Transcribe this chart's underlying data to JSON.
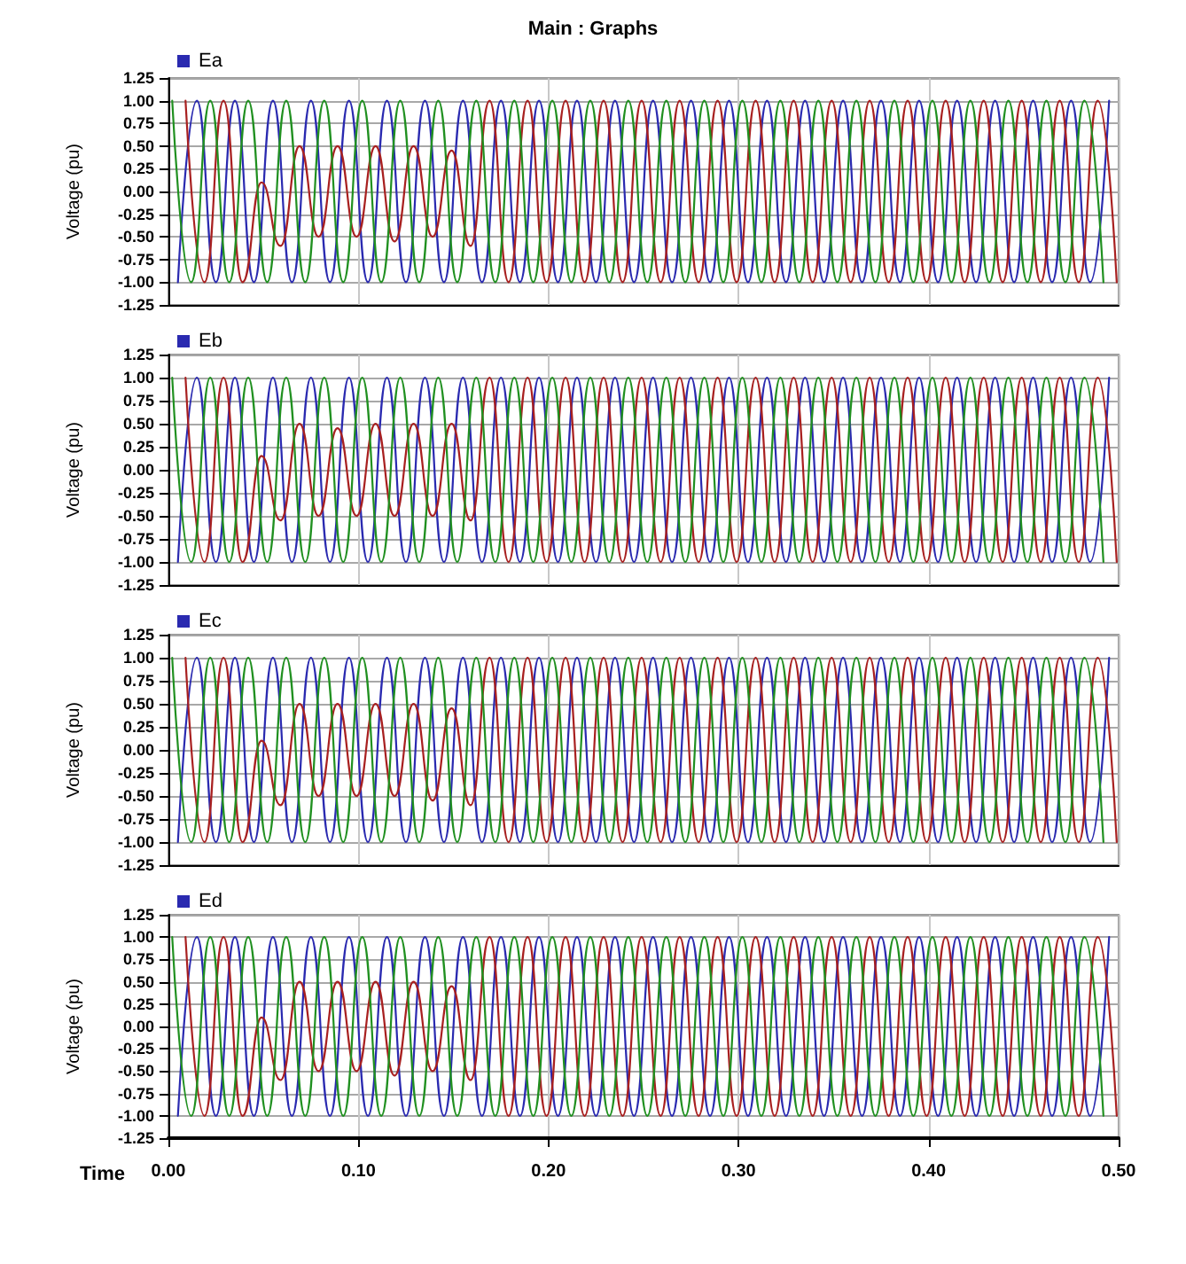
{
  "chart_data": [
    {
      "type": "line",
      "title": "Main : Graphs",
      "ylabel": "Voltage (pu)",
      "xlim": [
        0,
        0.5
      ],
      "ylim": [
        -1.25,
        1.25
      ],
      "xticks": [
        {
          "value": 0,
          "label": null
        },
        {
          "value": 0.1,
          "label": null
        },
        {
          "value": 0.2,
          "label": null
        },
        {
          "value": 0.3,
          "label": null
        },
        {
          "value": 0.4,
          "label": null
        },
        {
          "value": 0.5,
          "label": null
        }
      ],
      "yticks": [
        {
          "value": -1.25,
          "label": "-1.25"
        },
        {
          "value": -1,
          "label": "-1.00"
        },
        {
          "value": -0.75,
          "label": "-0.75"
        },
        {
          "value": -0.5,
          "label": "-0.50"
        },
        {
          "value": -0.25,
          "label": "-0.25"
        },
        {
          "value": 0,
          "label": "0.00"
        },
        {
          "value": 0.25,
          "label": "0.25"
        },
        {
          "value": 0.5,
          "label": "0.50"
        },
        {
          "value": 0.75,
          "label": "0.75"
        },
        {
          "value": 1,
          "label": "1.00"
        },
        {
          "value": 1.25,
          "label": "1.25"
        }
      ],
      "tick_labels": "y",
      "grid": true,
      "legend": "top left",
      "marker": "none",
      "line_style": "solid",
      "series": [
        {
          "name": "Ea",
          "color": "#2a2ab0",
          "x": [
            0.005,
            0.015,
            0.025,
            0.035,
            0.045,
            0.055,
            0.065,
            0.075,
            0.085,
            0.095,
            0.105,
            0.115,
            0.125,
            0.135,
            0.145,
            0.155,
            0.165,
            0.175,
            0.185,
            0.195,
            0.205,
            0.215,
            0.225,
            0.235,
            0.245,
            0.255,
            0.265,
            0.275,
            0.285,
            0.295,
            0.305,
            0.315,
            0.325,
            0.335,
            0.345,
            0.355,
            0.365,
            0.375,
            0.385,
            0.395,
            0.405,
            0.415,
            0.425,
            0.435,
            0.445,
            0.455,
            0.465,
            0.475,
            0.485,
            0.495
          ],
          "values": [
            -1,
            1,
            -1,
            1,
            -1,
            1,
            -1,
            1,
            -1,
            1,
            -1,
            1,
            -1,
            1,
            -1,
            1,
            -1,
            1,
            -1,
            1,
            -1,
            1,
            -1,
            1,
            -1,
            1,
            -1,
            1,
            -1,
            1,
            -1,
            1,
            -1,
            1,
            -1,
            1,
            -1,
            1,
            -1,
            1,
            -1,
            1,
            -1,
            1,
            -1,
            1,
            -1,
            1,
            -1,
            1
          ]
        },
        {
          "color": "#a82020",
          "x": [
            0.009,
            0.019,
            0.029,
            0.039,
            0.049,
            0.059,
            0.069,
            0.079,
            0.089,
            0.099,
            0.109,
            0.119,
            0.129,
            0.139,
            0.149,
            0.159,
            0.169,
            0.179,
            0.189,
            0.199,
            0.209,
            0.219,
            0.229,
            0.239,
            0.249,
            0.259,
            0.269,
            0.279,
            0.289,
            0.299,
            0.309,
            0.319,
            0.329,
            0.339,
            0.349,
            0.359,
            0.369,
            0.379,
            0.389,
            0.399,
            0.409,
            0.419,
            0.429,
            0.439,
            0.449,
            0.459,
            0.469,
            0.479,
            0.489,
            0.499
          ],
          "values": [
            1,
            -1,
            1,
            -1,
            0.1,
            -0.6,
            0.5,
            -0.5,
            0.5,
            -0.5,
            0.5,
            -0.55,
            0.5,
            -0.5,
            0.45,
            -0.6,
            1,
            -1,
            1,
            -1,
            1,
            -1,
            1,
            -1,
            1,
            -1,
            1,
            -1,
            1,
            -1,
            1,
            -1,
            1,
            -1,
            1,
            -1,
            1,
            -1,
            1,
            -1,
            1,
            -1,
            1,
            -1,
            1,
            -1,
            1,
            -1,
            1,
            -1
          ]
        },
        {
          "color": "#209020",
          "x": [
            0.002,
            0.012,
            0.022,
            0.032,
            0.042,
            0.052,
            0.062,
            0.072,
            0.082,
            0.092,
            0.102,
            0.112,
            0.122,
            0.132,
            0.142,
            0.152,
            0.162,
            0.172,
            0.182,
            0.192,
            0.202,
            0.212,
            0.222,
            0.232,
            0.242,
            0.252,
            0.262,
            0.272,
            0.282,
            0.292,
            0.302,
            0.312,
            0.322,
            0.332,
            0.342,
            0.352,
            0.362,
            0.372,
            0.382,
            0.392,
            0.402,
            0.412,
            0.422,
            0.432,
            0.442,
            0.452,
            0.462,
            0.472,
            0.482,
            0.492
          ],
          "values": [
            1,
            -1,
            1,
            -1,
            1,
            -1,
            1,
            -1,
            1,
            -1,
            1,
            -1,
            1,
            -1,
            1,
            -1,
            1,
            -1,
            1,
            -1,
            1,
            -1,
            1,
            -1,
            1,
            -1,
            1,
            -1,
            1,
            -1,
            1,
            -1,
            1,
            -1,
            1,
            -1,
            1,
            -1,
            1,
            -1,
            1,
            -1,
            1,
            -1,
            1,
            -1,
            1,
            -1,
            1,
            -1
          ]
        }
      ]
    },
    {
      "type": "line",
      "ylabel": "Voltage (pu)",
      "xlim": [
        0,
        0.5
      ],
      "ylim": [
        -1.25,
        1.25
      ],
      "xticks": [
        {
          "value": 0,
          "label": null
        },
        {
          "value": 0.1,
          "label": null
        },
        {
          "value": 0.2,
          "label": null
        },
        {
          "value": 0.3,
          "label": null
        },
        {
          "value": 0.4,
          "label": null
        },
        {
          "value": 0.5,
          "label": null
        }
      ],
      "yticks": [
        {
          "value": -1.25,
          "label": "-1.25"
        },
        {
          "value": -1,
          "label": "-1.00"
        },
        {
          "value": -0.75,
          "label": "-0.75"
        },
        {
          "value": -0.5,
          "label": "-0.50"
        },
        {
          "value": -0.25,
          "label": "-0.25"
        },
        {
          "value": 0,
          "label": "0.00"
        },
        {
          "value": 0.25,
          "label": "0.25"
        },
        {
          "value": 0.5,
          "label": "0.50"
        },
        {
          "value": 0.75,
          "label": "0.75"
        },
        {
          "value": 1,
          "label": "1.00"
        },
        {
          "value": 1.25,
          "label": "1.25"
        }
      ],
      "tick_labels": "y",
      "grid": true,
      "legend": "top left",
      "marker": "none",
      "line_style": "solid",
      "series": [
        {
          "name": "Eb",
          "color": "#2a2ab0",
          "x": [
            0.005,
            0.015,
            0.025,
            0.035,
            0.045,
            0.055,
            0.065,
            0.075,
            0.085,
            0.095,
            0.105,
            0.115,
            0.125,
            0.135,
            0.145,
            0.155,
            0.165,
            0.175,
            0.185,
            0.195,
            0.205,
            0.215,
            0.225,
            0.235,
            0.245,
            0.255,
            0.265,
            0.275,
            0.285,
            0.295,
            0.305,
            0.315,
            0.325,
            0.335,
            0.345,
            0.355,
            0.365,
            0.375,
            0.385,
            0.395,
            0.405,
            0.415,
            0.425,
            0.435,
            0.445,
            0.455,
            0.465,
            0.475,
            0.485,
            0.495
          ],
          "values": [
            -1,
            1,
            -1,
            1,
            -1,
            1,
            -1,
            1,
            -1,
            1,
            -1,
            1,
            -1,
            1,
            -1,
            1,
            -1,
            1,
            -1,
            1,
            -1,
            1,
            -1,
            1,
            -1,
            1,
            -1,
            1,
            -1,
            1,
            -1,
            1,
            -1,
            1,
            -1,
            1,
            -1,
            1,
            -1,
            1,
            -1,
            1,
            -1,
            1,
            -1,
            1,
            -1,
            1,
            -1,
            1
          ]
        },
        {
          "color": "#a82020",
          "x": [
            0.009,
            0.019,
            0.029,
            0.039,
            0.049,
            0.059,
            0.069,
            0.079,
            0.089,
            0.099,
            0.109,
            0.119,
            0.129,
            0.139,
            0.149,
            0.159,
            0.169,
            0.179,
            0.189,
            0.199,
            0.209,
            0.219,
            0.229,
            0.239,
            0.249,
            0.259,
            0.269,
            0.279,
            0.289,
            0.299,
            0.309,
            0.319,
            0.329,
            0.339,
            0.349,
            0.359,
            0.369,
            0.379,
            0.389,
            0.399,
            0.409,
            0.419,
            0.429,
            0.439,
            0.449,
            0.459,
            0.469,
            0.479,
            0.489,
            0.499
          ],
          "values": [
            1,
            -1,
            1,
            -1,
            0.15,
            -0.55,
            0.5,
            -0.5,
            0.45,
            -0.5,
            0.5,
            -0.5,
            0.5,
            -0.5,
            0.5,
            -0.55,
            1,
            -1,
            1,
            -1,
            1,
            -1,
            1,
            -1,
            1,
            -1,
            1,
            -1,
            1,
            -1,
            1,
            -1,
            1,
            -1,
            1,
            -1,
            1,
            -1,
            1,
            -1,
            1,
            -1,
            1,
            -1,
            1,
            -1,
            1,
            -1,
            1,
            -1
          ]
        },
        {
          "color": "#209020",
          "x": [
            0.002,
            0.012,
            0.022,
            0.032,
            0.042,
            0.052,
            0.062,
            0.072,
            0.082,
            0.092,
            0.102,
            0.112,
            0.122,
            0.132,
            0.142,
            0.152,
            0.162,
            0.172,
            0.182,
            0.192,
            0.202,
            0.212,
            0.222,
            0.232,
            0.242,
            0.252,
            0.262,
            0.272,
            0.282,
            0.292,
            0.302,
            0.312,
            0.322,
            0.332,
            0.342,
            0.352,
            0.362,
            0.372,
            0.382,
            0.392,
            0.402,
            0.412,
            0.422,
            0.432,
            0.442,
            0.452,
            0.462,
            0.472,
            0.482,
            0.492
          ],
          "values": [
            1,
            -1,
            1,
            -1,
            1,
            -1,
            1,
            -1,
            1,
            -1,
            1,
            -1,
            1,
            -1,
            1,
            -1,
            1,
            -1,
            1,
            -1,
            1,
            -1,
            1,
            -1,
            1,
            -1,
            1,
            -1,
            1,
            -1,
            1,
            -1,
            1,
            -1,
            1,
            -1,
            1,
            -1,
            1,
            -1,
            1,
            -1,
            1,
            -1,
            1,
            -1,
            1,
            -1,
            1,
            -1
          ]
        }
      ]
    },
    {
      "type": "line",
      "ylabel": "Voltage (pu)",
      "xlim": [
        0,
        0.5
      ],
      "ylim": [
        -1.25,
        1.25
      ],
      "xticks": [
        {
          "value": 0,
          "label": null
        },
        {
          "value": 0.1,
          "label": null
        },
        {
          "value": 0.2,
          "label": null
        },
        {
          "value": 0.3,
          "label": null
        },
        {
          "value": 0.4,
          "label": null
        },
        {
          "value": 0.5,
          "label": null
        }
      ],
      "yticks": [
        {
          "value": -1.25,
          "label": "-1.25"
        },
        {
          "value": -1,
          "label": "-1.00"
        },
        {
          "value": -0.75,
          "label": "-0.75"
        },
        {
          "value": -0.5,
          "label": "-0.50"
        },
        {
          "value": -0.25,
          "label": "-0.25"
        },
        {
          "value": 0,
          "label": "0.00"
        },
        {
          "value": 0.25,
          "label": "0.25"
        },
        {
          "value": 0.5,
          "label": "0.50"
        },
        {
          "value": 0.75,
          "label": "0.75"
        },
        {
          "value": 1,
          "label": "1.00"
        },
        {
          "value": 1.25,
          "label": "1.25"
        }
      ],
      "tick_labels": "y",
      "grid": true,
      "legend": "top left",
      "marker": "none",
      "line_style": "solid",
      "series": [
        {
          "name": "Ec",
          "color": "#2a2ab0",
          "x": [
            0.005,
            0.015,
            0.025,
            0.035,
            0.045,
            0.055,
            0.065,
            0.075,
            0.085,
            0.095,
            0.105,
            0.115,
            0.125,
            0.135,
            0.145,
            0.155,
            0.165,
            0.175,
            0.185,
            0.195,
            0.205,
            0.215,
            0.225,
            0.235,
            0.245,
            0.255,
            0.265,
            0.275,
            0.285,
            0.295,
            0.305,
            0.315,
            0.325,
            0.335,
            0.345,
            0.355,
            0.365,
            0.375,
            0.385,
            0.395,
            0.405,
            0.415,
            0.425,
            0.435,
            0.445,
            0.455,
            0.465,
            0.475,
            0.485,
            0.495
          ],
          "values": [
            -1,
            1,
            -1,
            1,
            -1,
            1,
            -1,
            1,
            -1,
            1,
            -1,
            1,
            -1,
            1,
            -1,
            1,
            -1,
            1,
            -1,
            1,
            -1,
            1,
            -1,
            1,
            -1,
            1,
            -1,
            1,
            -1,
            1,
            -1,
            1,
            -1,
            1,
            -1,
            1,
            -1,
            1,
            -1,
            1,
            -1,
            1,
            -1,
            1,
            -1,
            1,
            -1,
            1,
            -1,
            1
          ]
        },
        {
          "color": "#a82020",
          "x": [
            0.009,
            0.019,
            0.029,
            0.039,
            0.049,
            0.059,
            0.069,
            0.079,
            0.089,
            0.099,
            0.109,
            0.119,
            0.129,
            0.139,
            0.149,
            0.159,
            0.169,
            0.179,
            0.189,
            0.199,
            0.209,
            0.219,
            0.229,
            0.239,
            0.249,
            0.259,
            0.269,
            0.279,
            0.289,
            0.299,
            0.309,
            0.319,
            0.329,
            0.339,
            0.349,
            0.359,
            0.369,
            0.379,
            0.389,
            0.399,
            0.409,
            0.419,
            0.429,
            0.439,
            0.449,
            0.459,
            0.469,
            0.479,
            0.489,
            0.499
          ],
          "values": [
            1,
            -1,
            1,
            -1,
            0.1,
            -0.6,
            0.5,
            -0.5,
            0.5,
            -0.5,
            0.5,
            -0.5,
            0.5,
            -0.55,
            0.45,
            -0.6,
            1,
            -1,
            1,
            -1,
            1,
            -1,
            1,
            -1,
            1,
            -1,
            1,
            -1,
            1,
            -1,
            1,
            -1,
            1,
            -1,
            1,
            -1,
            1,
            -1,
            1,
            -1,
            1,
            -1,
            1,
            -1,
            1,
            -1,
            1,
            -1,
            1,
            -1
          ]
        },
        {
          "color": "#209020",
          "x": [
            0.002,
            0.012,
            0.022,
            0.032,
            0.042,
            0.052,
            0.062,
            0.072,
            0.082,
            0.092,
            0.102,
            0.112,
            0.122,
            0.132,
            0.142,
            0.152,
            0.162,
            0.172,
            0.182,
            0.192,
            0.202,
            0.212,
            0.222,
            0.232,
            0.242,
            0.252,
            0.262,
            0.272,
            0.282,
            0.292,
            0.302,
            0.312,
            0.322,
            0.332,
            0.342,
            0.352,
            0.362,
            0.372,
            0.382,
            0.392,
            0.402,
            0.412,
            0.422,
            0.432,
            0.442,
            0.452,
            0.462,
            0.472,
            0.482,
            0.492
          ],
          "values": [
            1,
            -1,
            1,
            -1,
            1,
            -1,
            1,
            -1,
            1,
            -1,
            1,
            -1,
            1,
            -1,
            1,
            -1,
            1,
            -1,
            1,
            -1,
            1,
            -1,
            1,
            -1,
            1,
            -1,
            1,
            -1,
            1,
            -1,
            1,
            -1,
            1,
            -1,
            1,
            -1,
            1,
            -1,
            1,
            -1,
            1,
            -1,
            1,
            -1,
            1,
            -1,
            1,
            -1,
            1,
            -1
          ]
        }
      ]
    },
    {
      "type": "line",
      "ylabel": "Voltage (pu)",
      "xlabel": "Time",
      "xlim": [
        0,
        0.5
      ],
      "ylim": [
        -1.25,
        1.25
      ],
      "xticks": [
        {
          "value": 0,
          "label": "0.00"
        },
        {
          "value": 0.1,
          "label": "0.10"
        },
        {
          "value": 0.2,
          "label": "0.20"
        },
        {
          "value": 0.3,
          "label": "0.30"
        },
        {
          "value": 0.4,
          "label": "0.40"
        },
        {
          "value": 0.5,
          "label": "0.50"
        }
      ],
      "yticks": [
        {
          "value": -1.25,
          "label": "-1.25"
        },
        {
          "value": -1,
          "label": "-1.00"
        },
        {
          "value": -0.75,
          "label": "-0.75"
        },
        {
          "value": -0.5,
          "label": "-0.50"
        },
        {
          "value": -0.25,
          "label": "-0.25"
        },
        {
          "value": 0,
          "label": "0.00"
        },
        {
          "value": 0.25,
          "label": "0.25"
        },
        {
          "value": 0.5,
          "label": "0.50"
        },
        {
          "value": 0.75,
          "label": "0.75"
        },
        {
          "value": 1,
          "label": "1.00"
        },
        {
          "value": 1.25,
          "label": "1.25"
        }
      ],
      "grid": true,
      "legend": "top left",
      "marker": "none",
      "line_style": "solid",
      "series": [
        {
          "name": "Ed",
          "color": "#2a2ab0",
          "x": [
            0.005,
            0.015,
            0.025,
            0.035,
            0.045,
            0.055,
            0.065,
            0.075,
            0.085,
            0.095,
            0.105,
            0.115,
            0.125,
            0.135,
            0.145,
            0.155,
            0.165,
            0.175,
            0.185,
            0.195,
            0.205,
            0.215,
            0.225,
            0.235,
            0.245,
            0.255,
            0.265,
            0.275,
            0.285,
            0.295,
            0.305,
            0.315,
            0.325,
            0.335,
            0.345,
            0.355,
            0.365,
            0.375,
            0.385,
            0.395,
            0.405,
            0.415,
            0.425,
            0.435,
            0.445,
            0.455,
            0.465,
            0.475,
            0.485,
            0.495
          ],
          "values": [
            -1,
            1,
            -1,
            1,
            -1,
            1,
            -1,
            1,
            -1,
            1,
            -1,
            1,
            -1,
            1,
            -1,
            1,
            -1,
            1,
            -1,
            1,
            -1,
            1,
            -1,
            1,
            -1,
            1,
            -1,
            1,
            -1,
            1,
            -1,
            1,
            -1,
            1,
            -1,
            1,
            -1,
            1,
            -1,
            1,
            -1,
            1,
            -1,
            1,
            -1,
            1,
            -1,
            1,
            -1,
            1
          ]
        },
        {
          "color": "#a82020",
          "x": [
            0.009,
            0.019,
            0.029,
            0.039,
            0.049,
            0.059,
            0.069,
            0.079,
            0.089,
            0.099,
            0.109,
            0.119,
            0.129,
            0.139,
            0.149,
            0.159,
            0.169,
            0.179,
            0.189,
            0.199,
            0.209,
            0.219,
            0.229,
            0.239,
            0.249,
            0.259,
            0.269,
            0.279,
            0.289,
            0.299,
            0.309,
            0.319,
            0.329,
            0.339,
            0.349,
            0.359,
            0.369,
            0.379,
            0.389,
            0.399,
            0.409,
            0.419,
            0.429,
            0.439,
            0.449,
            0.459,
            0.469,
            0.479,
            0.489,
            0.499
          ],
          "values": [
            1,
            -1,
            1,
            -1,
            0.1,
            -0.6,
            0.5,
            -0.5,
            0.5,
            -0.5,
            0.5,
            -0.55,
            0.5,
            -0.5,
            0.45,
            -0.6,
            1,
            -1,
            1,
            -1,
            1,
            -1,
            1,
            -1,
            1,
            -1,
            1,
            -1,
            1,
            -1,
            1,
            -1,
            1,
            -1,
            1,
            -1,
            1,
            -1,
            1,
            -1,
            1,
            -1,
            1,
            -1,
            1,
            -1,
            1,
            -1,
            1,
            -1
          ]
        },
        {
          "color": "#209020",
          "x": [
            0.002,
            0.012,
            0.022,
            0.032,
            0.042,
            0.052,
            0.062,
            0.072,
            0.082,
            0.092,
            0.102,
            0.112,
            0.122,
            0.132,
            0.142,
            0.152,
            0.162,
            0.172,
            0.182,
            0.192,
            0.202,
            0.212,
            0.222,
            0.232,
            0.242,
            0.252,
            0.262,
            0.272,
            0.282,
            0.292,
            0.302,
            0.312,
            0.322,
            0.332,
            0.342,
            0.352,
            0.362,
            0.372,
            0.382,
            0.392,
            0.402,
            0.412,
            0.422,
            0.432,
            0.442,
            0.452,
            0.462,
            0.472,
            0.482,
            0.492
          ],
          "values": [
            1,
            -1,
            1,
            -1,
            1,
            -1,
            1,
            -1,
            1,
            -1,
            1,
            -1,
            1,
            -1,
            1,
            -1,
            1,
            -1,
            1,
            -1,
            1,
            -1,
            1,
            -1,
            1,
            -1,
            1,
            -1,
            1,
            -1,
            1,
            -1,
            1,
            -1,
            1,
            -1,
            1,
            -1,
            1,
            -1,
            1,
            -1,
            1,
            -1,
            1,
            -1,
            1,
            -1,
            1,
            -1
          ]
        }
      ]
    }
  ]
}
